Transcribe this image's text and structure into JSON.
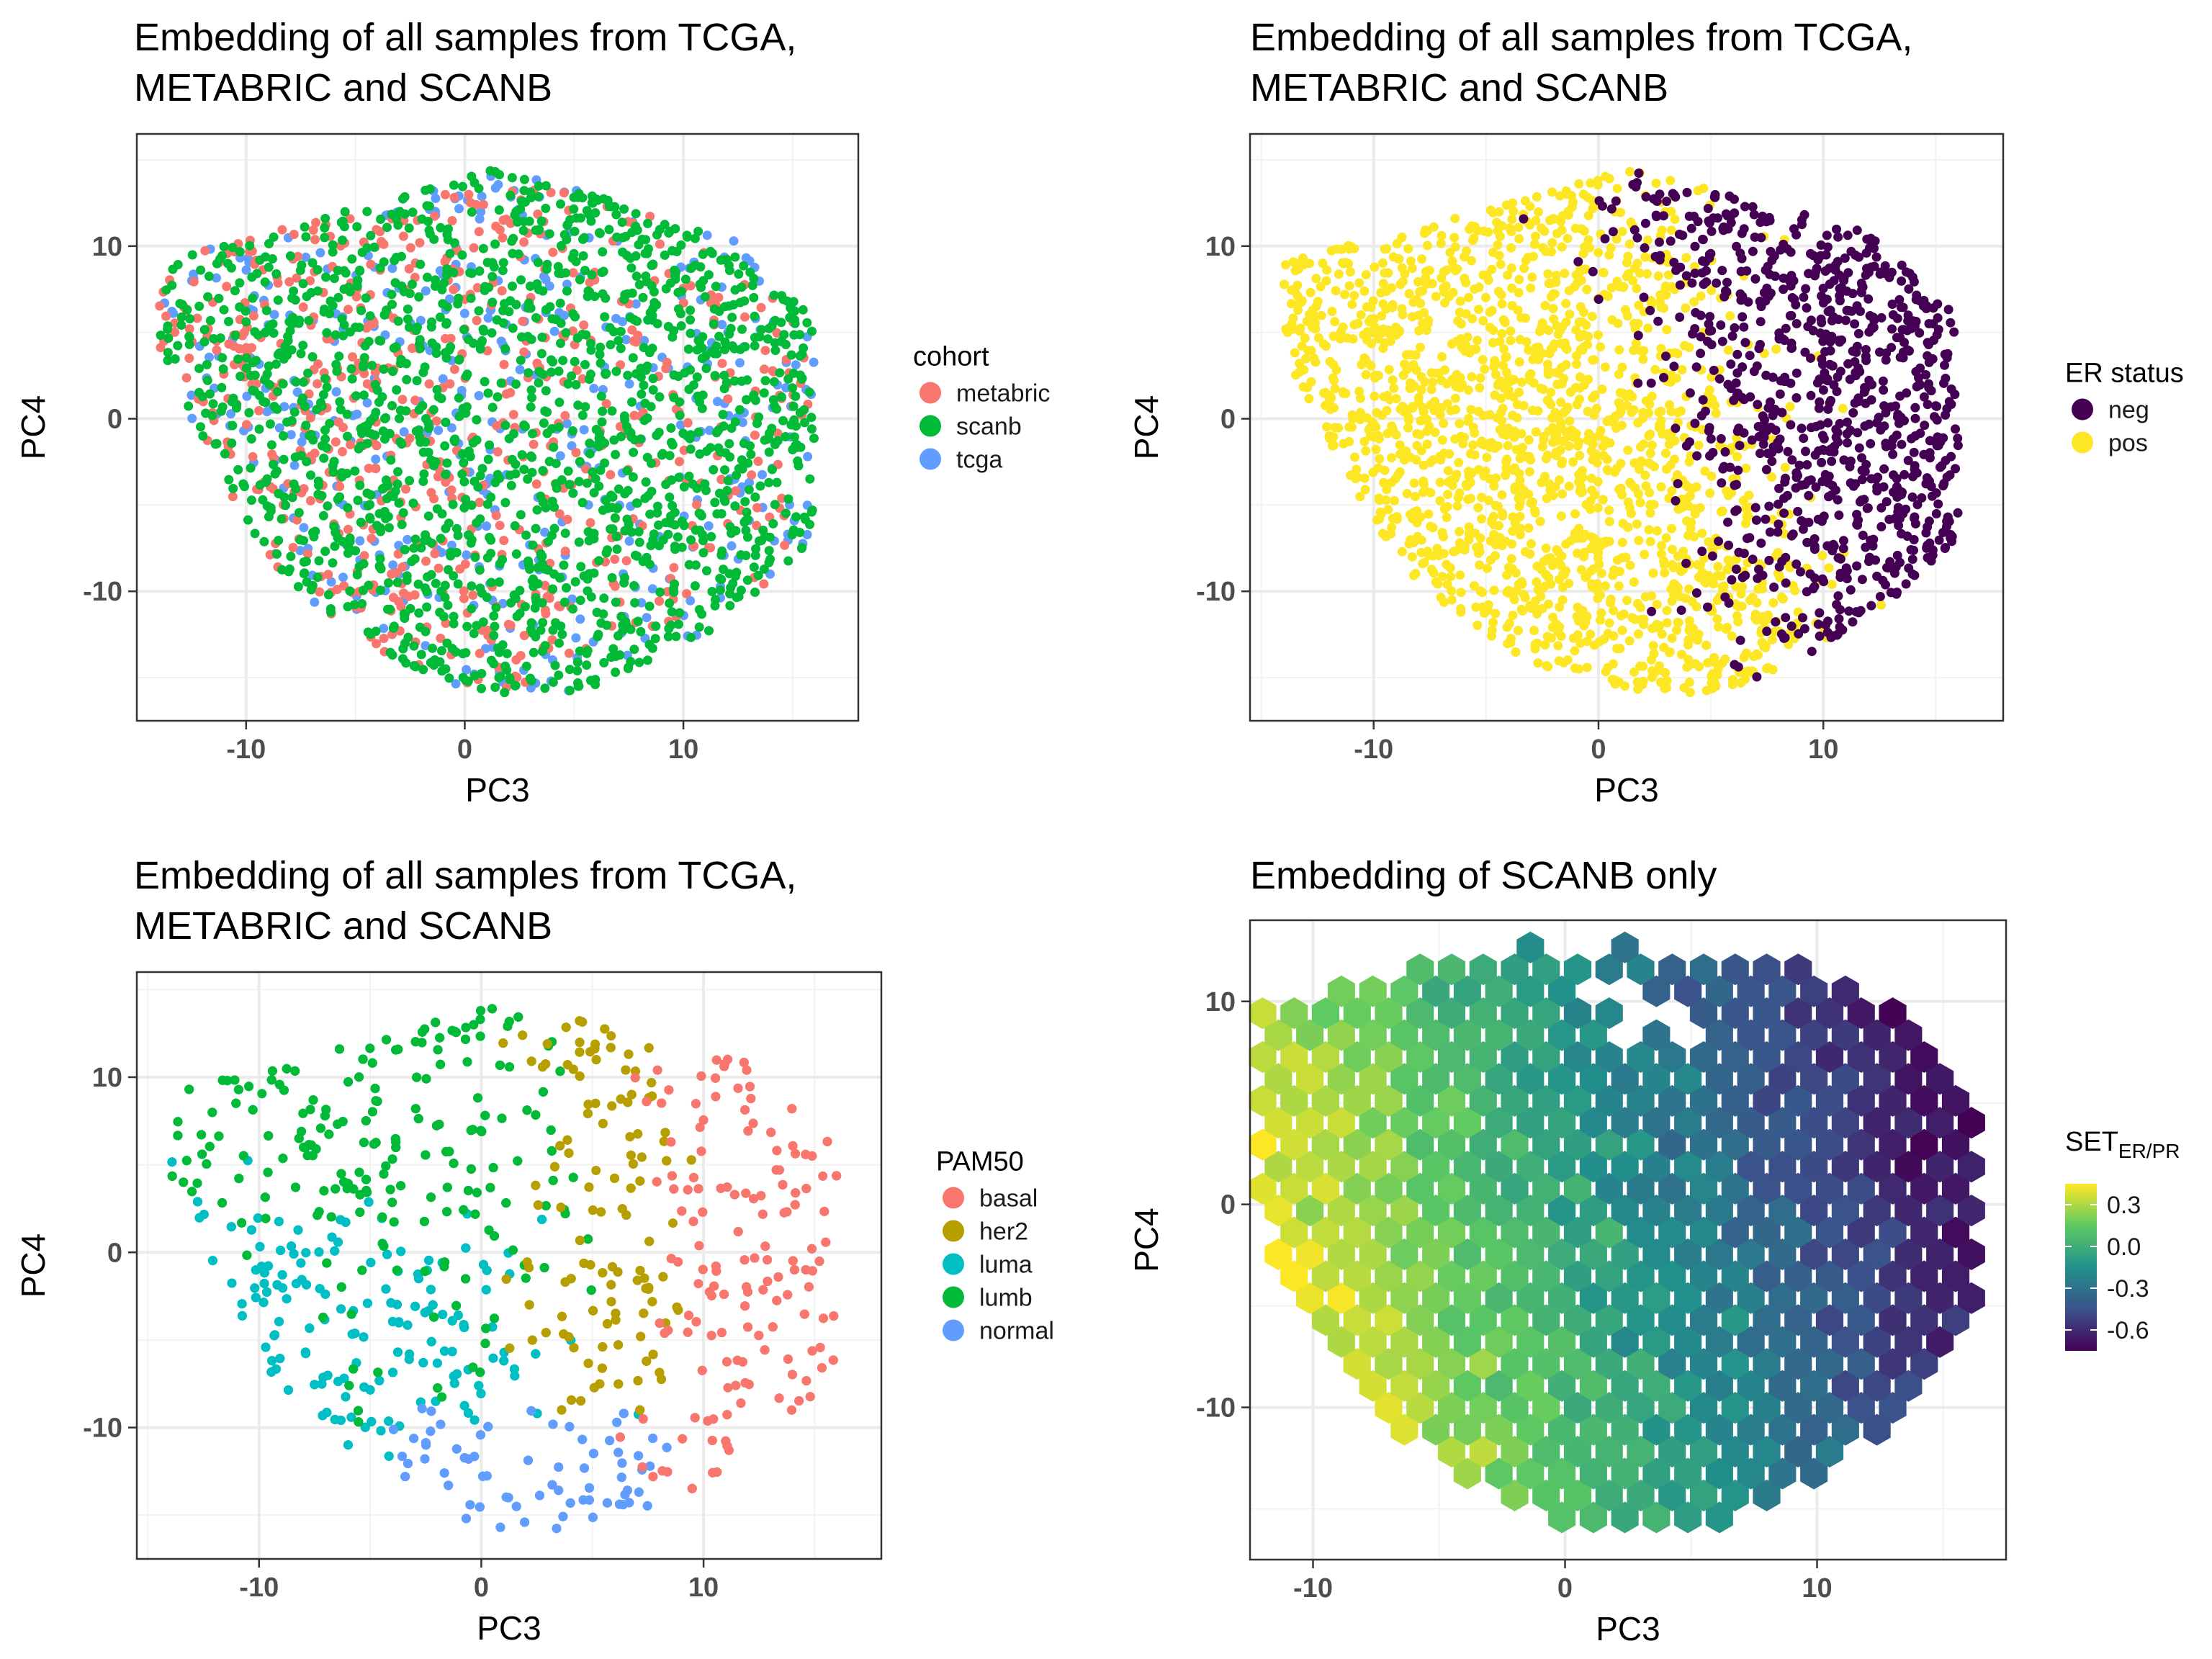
{
  "chart_data": [
    {
      "type": "scatter",
      "title": [
        "Embedding of all samples from TCGA,",
        "METABRIC and SCANB"
      ],
      "xlabel": "PC3",
      "ylabel": "PC4",
      "xlim": [
        -15,
        18
      ],
      "ylim": [
        -17.5,
        16.5
      ],
      "xticks": [
        -10,
        0,
        10
      ],
      "xtick_labels": [
        "-10",
        "0",
        "10"
      ],
      "yticks": [
        -10,
        0,
        10
      ],
      "ytick_labels": [
        "-10",
        "0",
        "10"
      ],
      "grid": true,
      "legend": {
        "title": "cohort",
        "position": "right"
      },
      "series": [
        {
          "name": "metabric",
          "color": "#F8766D"
        },
        {
          "name": "scanb",
          "color": "#00BA38"
        },
        {
          "name": "tcga",
          "color": "#619CFF"
        }
      ]
    },
    {
      "type": "scatter",
      "title": [
        "Embedding of all samples from TCGA,",
        "METABRIC and SCANB"
      ],
      "xlabel": "PC3",
      "ylabel": "PC4",
      "xlim": [
        -15.5,
        18
      ],
      "ylim": [
        -17.5,
        16.5
      ],
      "xticks": [
        -10,
        0,
        10
      ],
      "xtick_labels": [
        "-10",
        "0",
        "10"
      ],
      "yticks": [
        -10,
        0,
        10
      ],
      "ytick_labels": [
        "-10",
        "0",
        "10"
      ],
      "grid": true,
      "legend": {
        "title": "ER status",
        "position": "right"
      },
      "series": [
        {
          "name": "neg",
          "color": "#440154"
        },
        {
          "name": "pos",
          "color": "#FDE725"
        }
      ]
    },
    {
      "type": "scatter",
      "title": [
        "Embedding of all samples from TCGA,",
        "METABRIC and SCANB"
      ],
      "xlabel": "PC3",
      "ylabel": "PC4",
      "xlim": [
        -15.5,
        18
      ],
      "ylim": [
        -17.5,
        16
      ],
      "xticks": [
        -10,
        0,
        10
      ],
      "xtick_labels": [
        "-10",
        "0",
        "10"
      ],
      "yticks": [
        -10,
        0,
        10
      ],
      "ytick_labels": [
        "-10",
        "0",
        "10"
      ],
      "grid": true,
      "legend": {
        "title": "PAM50",
        "position": "right"
      },
      "series": [
        {
          "name": "basal",
          "color": "#F8766D"
        },
        {
          "name": "her2",
          "color": "#B79F00"
        },
        {
          "name": "luma",
          "color": "#00BFC4"
        },
        {
          "name": "lumb",
          "color": "#00BA38"
        },
        {
          "name": "normal",
          "color": "#619CFF"
        }
      ]
    },
    {
      "type": "heatmap",
      "title": [
        "Embedding of SCANB only"
      ],
      "xlabel": "PC3",
      "ylabel": "PC4",
      "xlim": [
        -12.5,
        17.5
      ],
      "ylim": [
        -17.5,
        14
      ],
      "xticks": [
        -10,
        0,
        10
      ],
      "xtick_labels": [
        "-10",
        "0",
        "10"
      ],
      "yticks": [
        -10,
        0,
        10
      ],
      "ytick_labels": [
        "-10",
        "0",
        "10"
      ],
      "grid": true,
      "legend": {
        "title": "SET",
        "title_subscript": "ER/PR",
        "position": "right",
        "range": [
          -0.75,
          0.45
        ],
        "ticks": [
          0.3,
          0.0,
          -0.3,
          -0.6
        ],
        "tick_labels": [
          "0.3",
          "0.0",
          "-0.3",
          "-0.6"
        ]
      },
      "colorscale": [
        "#440154",
        "#3b528b",
        "#21918c",
        "#5ec962",
        "#fde725"
      ]
    }
  ]
}
